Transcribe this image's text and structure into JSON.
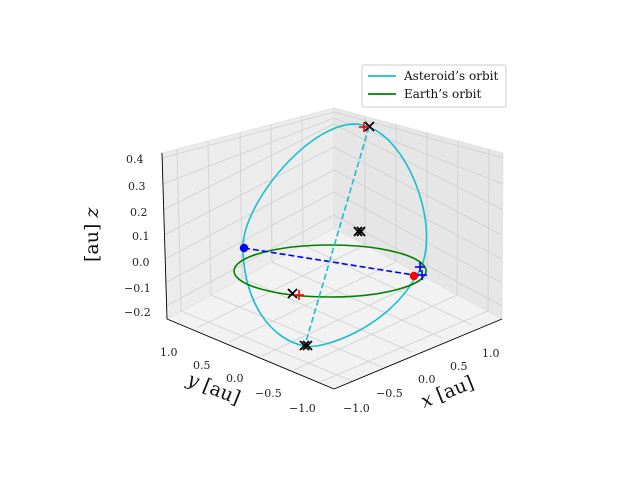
{
  "chart_data": {
    "type": "line3d",
    "title": "",
    "xlabel": "$x$ [au]",
    "ylabel": "$y$ [au]",
    "zlabel": "$z$ [au]",
    "xlabel_parts": {
      "var": "x",
      "unit": "[au]"
    },
    "ylabel_parts": {
      "var": "y",
      "unit": "[au]"
    },
    "zlabel_parts": {
      "var": "z",
      "unit": "[au]"
    },
    "xlim": [
      -1.2,
      1.2
    ],
    "ylim": [
      -1.2,
      1.2
    ],
    "zlim": [
      -0.25,
      0.45
    ],
    "x_ticks": [
      "−1.0",
      "−0.5",
      "0.0",
      "0.5",
      "1.0"
    ],
    "y_ticks": [
      "1.0",
      "0.5",
      "0.0",
      "−0.5",
      "−1.0"
    ],
    "z_ticks": [
      "−0.2",
      "−0.1",
      "0.0",
      "0.1",
      "0.2",
      "0.3",
      "0.4"
    ],
    "grid": true,
    "legend_position": "top-right",
    "series": [
      {
        "name": "Asteroid’s orbit",
        "color": "#17becf",
        "style": "solid",
        "shape": "inclined ellipse"
      },
      {
        "name": "Earth’s orbit",
        "color": "#008000",
        "style": "solid",
        "shape": "circle r=1 in z=0 plane"
      }
    ],
    "lines": [
      {
        "kind": "line of nodes",
        "color": "#0000ff",
        "style": "dashed"
      },
      {
        "kind": "line of apsides",
        "color": "#17becf",
        "style": "dashed"
      }
    ],
    "markers": [
      {
        "kind": "dot",
        "color": "#0000ff",
        "label": "node"
      },
      {
        "kind": "dot",
        "color": "#ff0000",
        "label": "node"
      },
      {
        "kind": "x",
        "color": "#000000",
        "label": "center"
      },
      {
        "kind": "x",
        "color": "#000000",
        "label": "apsis"
      },
      {
        "kind": "x",
        "color": "#000000",
        "label": "apsis"
      },
      {
        "kind": "x",
        "color": "#000000",
        "label": "node"
      },
      {
        "kind": "plus",
        "color": "#ff0000",
        "label": "apsis"
      },
      {
        "kind": "plus",
        "color": "#ff0000",
        "label": "apsis"
      },
      {
        "kind": "plus",
        "color": "#0000ff",
        "label": "node"
      },
      {
        "kind": "plus",
        "color": "#0000ff",
        "label": "node"
      }
    ]
  }
}
